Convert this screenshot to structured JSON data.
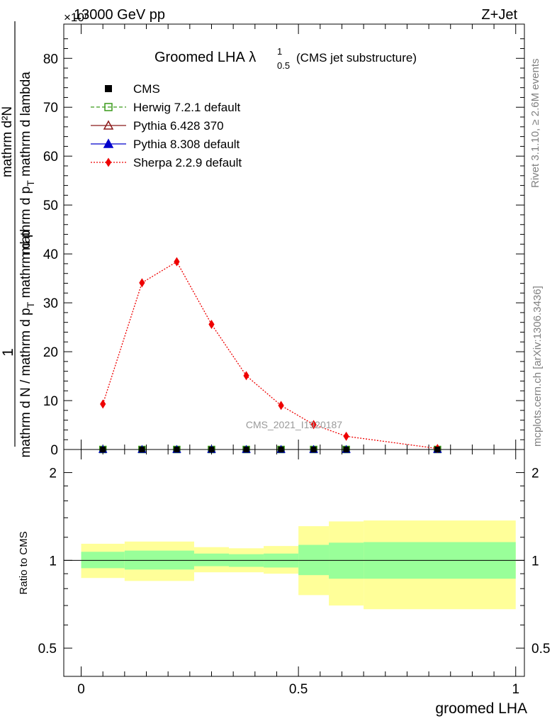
{
  "header": {
    "energy": "13000 GeV pp",
    "process": "Z+Jet",
    "exponent": "×10⁶"
  },
  "title": {
    "main": "Groomed LHA",
    "lambda": "λ",
    "sup": "1",
    "sub": "0.5",
    "note": "(CMS jet substructure)"
  },
  "side_labels": {
    "rivet": "Rivet 3.1.10, ≥ 2.6M events",
    "mcplots": "mcplots.cern.ch [arXiv:1306.3436]"
  },
  "watermark": "CMS_2021_I1920187",
  "ylabel_top": {
    "one": "1",
    "num": "mathrm d²N",
    "den": "mathrm d p",
    "den_sub": "T",
    "den_rest": " mathrm d lambda",
    "outer": "mathrm d N / mathrm d p",
    "outer_sub": "T",
    "outer_rest": " mathrm d p"
  },
  "ylabel_ratio": "Ratio to CMS",
  "xlabel": "groomed LHA",
  "legend": [
    {
      "label": "CMS",
      "color": "#000000",
      "marker": "square-filled",
      "line": "none"
    },
    {
      "label": "Herwig 7.2.1 default",
      "color": "#3a9a1a",
      "marker": "square-open",
      "line": "dashed"
    },
    {
      "label": "Pythia 6.428 370",
      "color": "#8b1a1a",
      "marker": "triangle-open",
      "line": "solid"
    },
    {
      "label": "Pythia 8.308 default",
      "color": "#0000cc",
      "marker": "triangle-filled",
      "line": "solid"
    },
    {
      "label": "Sherpa 2.2.9 default",
      "color": "#ee0000",
      "marker": "diamond-filled",
      "line": "dotted"
    }
  ],
  "chart_data": [
    {
      "type": "line",
      "panel": "main",
      "xlim": [
        -0.04,
        1.02
      ],
      "ylim": [
        0,
        87
      ],
      "yticks": [
        0,
        10,
        20,
        30,
        40,
        50,
        60,
        70,
        80
      ],
      "series": [
        {
          "name": "Sherpa 2.2.9 default",
          "x": [
            0.05,
            0.14,
            0.22,
            0.3,
            0.38,
            0.46,
            0.535,
            0.61,
            0.82
          ],
          "y": [
            9.3,
            34.1,
            38.4,
            25.6,
            15.1,
            9.0,
            5.1,
            2.7,
            0.2
          ]
        },
        {
          "name": "CMS",
          "x": [
            0.05,
            0.14,
            0.22,
            0.3,
            0.38,
            0.46,
            0.535,
            0.61,
            0.82
          ],
          "y": [
            0,
            0,
            0,
            0,
            0,
            0,
            0,
            0,
            0
          ]
        }
      ]
    },
    {
      "type": "area",
      "panel": "ratio",
      "xlim": [
        -0.04,
        1.02
      ],
      "ylim": [
        0.4,
        2.4
      ],
      "scale": "log",
      "yticks": [
        0.5,
        1,
        2
      ],
      "xticks": [
        0,
        0.5,
        1
      ],
      "bins": [
        {
          "lo": 0.0,
          "hi": 0.1,
          "inner": [
            0.94,
            1.07
          ],
          "outer": [
            0.87,
            1.14
          ]
        },
        {
          "lo": 0.1,
          "hi": 0.26,
          "inner": [
            0.93,
            1.08
          ],
          "outer": [
            0.85,
            1.16
          ]
        },
        {
          "lo": 0.26,
          "hi": 0.34,
          "inner": [
            0.955,
            1.055
          ],
          "outer": [
            0.91,
            1.11
          ]
        },
        {
          "lo": 0.34,
          "hi": 0.42,
          "inner": [
            0.95,
            1.05
          ],
          "outer": [
            0.91,
            1.1
          ]
        },
        {
          "lo": 0.42,
          "hi": 0.5,
          "inner": [
            0.945,
            1.055
          ],
          "outer": [
            0.9,
            1.12
          ]
        },
        {
          "lo": 0.5,
          "hi": 0.57,
          "inner": [
            0.89,
            1.13
          ],
          "outer": [
            0.76,
            1.31
          ]
        },
        {
          "lo": 0.57,
          "hi": 0.65,
          "inner": [
            0.865,
            1.15
          ],
          "outer": [
            0.7,
            1.36
          ]
        },
        {
          "lo": 0.65,
          "hi": 1.0,
          "inner": [
            0.865,
            1.155
          ],
          "outer": [
            0.68,
            1.37
          ]
        }
      ]
    }
  ]
}
